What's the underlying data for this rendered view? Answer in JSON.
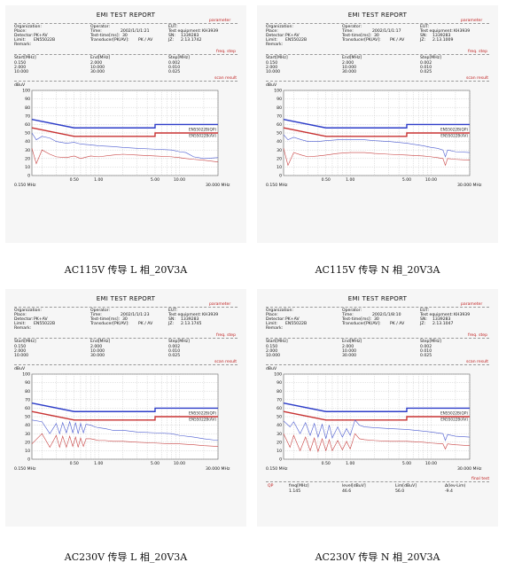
{
  "report": {
    "title": "EMI TEST REPORT",
    "section_parameter": "parameter",
    "section_freq": "freq. step",
    "section_scan": "scan result",
    "section_final": "final test",
    "labels": {
      "organization": "Organization:",
      "place": "Place:",
      "detector": "Detector:",
      "limit": "Limit:",
      "remark": "Remark:",
      "operator": "Operator:",
      "time": "Time:",
      "testtime": "Test-time[ms]:",
      "transducer": "Transducer[PK/AV]:",
      "eut": "EUT:",
      "testeq": "Test equipment:",
      "sn": "SN:",
      "jz": "JZ:",
      "start": "Start[MHz]",
      "end": "End[MHz]",
      "step": "Step[MHz]",
      "unit_y": "dBuV",
      "x_left": "0.150 MHz",
      "x_right": "30.000 MHz"
    },
    "values": {
      "detector": "PK+AV",
      "limit": "EN55022B",
      "testtime": "30",
      "transducer": "PK / AV",
      "testeq": "KH3939",
      "sn": "1339283"
    },
    "freq_rows": [
      [
        "0.150",
        "2.000",
        "0.002"
      ],
      [
        "2.000",
        "10.000",
        "0.010"
      ],
      [
        "10.000",
        "30.000",
        "0.025"
      ]
    ],
    "legend": [
      "EN55022B(QP)",
      "EN55022B(AV)"
    ],
    "final_headers": [
      "freq[MHz]",
      "level[dBuV]",
      "Lim[dBuV]",
      "Δ(lev-Lim)"
    ],
    "final_row": [
      "1.145",
      "46.6",
      "56.0",
      "-9.4"
    ],
    "final_tag": "QP"
  },
  "panels": [
    {
      "caption": "AC115V 传导 L 相_20V3A",
      "time": "2002/1/1/1:21",
      "jz": "2.13.1742"
    },
    {
      "caption": "AC115V 传导 N 相_20V3A",
      "time": "2002/1/1/1:17",
      "jz": "2.13.1009"
    },
    {
      "caption": "AC230V 传导 L 相_20V3A",
      "time": "2002/1/1/1:23",
      "jz": "2.13.1745"
    },
    {
      "caption": "AC230V 传导 N 相_20V3A",
      "time": "2002/1/1/8:10",
      "jz": "2.13.1047"
    }
  ],
  "chart_data": [
    {
      "type": "line",
      "xscale": "log",
      "xlim": [
        0.15,
        30
      ],
      "ylim": [
        0,
        100
      ],
      "xticks": [
        "0.50",
        "1.00",
        "5.00",
        "10.00"
      ],
      "yticks": [
        0,
        10,
        20,
        30,
        40,
        50,
        60,
        70,
        80,
        90,
        100
      ],
      "series": [
        {
          "name": "EN55022B(QP)",
          "color": "#2c3cc8",
          "x": [
            0.15,
            0.5,
            0.5,
            5,
            5,
            30
          ],
          "y": [
            66,
            56,
            56,
            56,
            60,
            60
          ]
        },
        {
          "name": "EN55022B(AV)",
          "color": "#c83232",
          "x": [
            0.15,
            0.5,
            0.5,
            5,
            5,
            30
          ],
          "y": [
            56,
            46,
            46,
            46,
            50,
            50
          ]
        },
        {
          "color": "#4a5ad0",
          "x": [
            0.15,
            0.17,
            0.2,
            0.25,
            0.3,
            0.4,
            0.5,
            0.6,
            0.8,
            1,
            1.5,
            2,
            3,
            5,
            8,
            10,
            12,
            15,
            20,
            30
          ],
          "y": [
            50,
            42,
            46,
            44,
            40,
            38,
            39,
            37,
            36,
            35,
            34,
            33,
            32,
            31,
            30,
            28,
            27,
            22,
            20,
            21
          ]
        },
        {
          "color": "#c84040",
          "x": [
            0.15,
            0.17,
            0.2,
            0.25,
            0.3,
            0.4,
            0.5,
            0.6,
            0.8,
            1,
            1.5,
            2,
            3,
            5,
            8,
            10,
            12,
            15,
            20,
            30
          ],
          "y": [
            32,
            14,
            30,
            25,
            22,
            21,
            23,
            20,
            23,
            22,
            24,
            25,
            24,
            23,
            22,
            21,
            20,
            19,
            18,
            16
          ]
        }
      ]
    },
    {
      "type": "line",
      "xscale": "log",
      "xlim": [
        0.15,
        30
      ],
      "ylim": [
        0,
        100
      ],
      "xticks": [
        "0.50",
        "1.00",
        "5.00",
        "10.00"
      ],
      "yticks": [
        0,
        10,
        20,
        30,
        40,
        50,
        60,
        70,
        80,
        90,
        100
      ],
      "series": [
        {
          "name": "EN55022B(QP)",
          "color": "#2c3cc8",
          "x": [
            0.15,
            0.5,
            0.5,
            5,
            5,
            30
          ],
          "y": [
            66,
            56,
            56,
            56,
            60,
            60
          ]
        },
        {
          "name": "EN55022B(AV)",
          "color": "#c83232",
          "x": [
            0.15,
            0.5,
            0.5,
            5,
            5,
            30
          ],
          "y": [
            56,
            46,
            46,
            46,
            50,
            50
          ]
        },
        {
          "color": "#4a5ad0",
          "x": [
            0.15,
            0.17,
            0.2,
            0.25,
            0.3,
            0.4,
            0.5,
            0.7,
            1,
            1.5,
            2,
            3,
            5,
            8,
            10,
            12,
            14,
            15,
            16,
            20,
            30
          ],
          "y": [
            48,
            42,
            45,
            42,
            40,
            40,
            41,
            42,
            42,
            42,
            41,
            40,
            38,
            35,
            33,
            32,
            30,
            22,
            30,
            28,
            27
          ]
        },
        {
          "color": "#c84040",
          "x": [
            0.15,
            0.17,
            0.2,
            0.25,
            0.3,
            0.4,
            0.5,
            0.7,
            1,
            1.5,
            2,
            3,
            5,
            8,
            10,
            12,
            14,
            15,
            16,
            20,
            30
          ],
          "y": [
            32,
            12,
            27,
            24,
            22,
            23,
            24,
            26,
            27,
            27,
            26,
            25,
            24,
            23,
            22,
            21,
            20,
            12,
            20,
            19,
            18
          ]
        }
      ]
    },
    {
      "type": "line",
      "xscale": "log",
      "xlim": [
        0.15,
        30
      ],
      "ylim": [
        0,
        100
      ],
      "xticks": [
        "0.50",
        "1.00",
        "5.00",
        "10.00"
      ],
      "yticks": [
        0,
        10,
        20,
        30,
        40,
        50,
        60,
        70,
        80,
        90,
        100
      ],
      "series": [
        {
          "name": "EN55022B(QP)",
          "color": "#2c3cc8",
          "x": [
            0.15,
            0.5,
            0.5,
            5,
            5,
            30
          ],
          "y": [
            66,
            56,
            56,
            56,
            60,
            60
          ]
        },
        {
          "name": "EN55022B(AV)",
          "color": "#c83232",
          "x": [
            0.15,
            0.5,
            0.5,
            5,
            5,
            30
          ],
          "y": [
            56,
            46,
            46,
            46,
            50,
            50
          ]
        },
        {
          "color": "#4a5ad0",
          "x": [
            0.15,
            0.2,
            0.25,
            0.3,
            0.33,
            0.36,
            0.4,
            0.44,
            0.48,
            0.52,
            0.56,
            0.6,
            0.65,
            0.7,
            0.8,
            0.9,
            1,
            1.2,
            1.5,
            2,
            3,
            5,
            8,
            10,
            15,
            20,
            30
          ],
          "y": [
            46,
            44,
            30,
            42,
            30,
            43,
            31,
            44,
            31,
            43,
            30,
            42,
            31,
            41,
            40,
            38,
            37,
            36,
            34,
            34,
            32,
            31,
            30,
            28,
            26,
            24,
            22
          ]
        },
        {
          "color": "#c84040",
          "x": [
            0.15,
            0.2,
            0.25,
            0.3,
            0.33,
            0.36,
            0.4,
            0.44,
            0.48,
            0.52,
            0.56,
            0.6,
            0.65,
            0.7,
            0.8,
            0.9,
            1,
            1.2,
            1.5,
            2,
            3,
            5,
            8,
            10,
            15,
            20,
            30
          ],
          "y": [
            18,
            30,
            14,
            28,
            14,
            27,
            14,
            27,
            15,
            26,
            14,
            25,
            15,
            24,
            24,
            23,
            22,
            22,
            21,
            21,
            20,
            19,
            18,
            18,
            17,
            16,
            15
          ]
        }
      ]
    },
    {
      "type": "line",
      "xscale": "log",
      "xlim": [
        0.15,
        30
      ],
      "ylim": [
        0,
        100
      ],
      "xticks": [
        "0.50",
        "1.00",
        "5.00",
        "10.00"
      ],
      "yticks": [
        0,
        10,
        20,
        30,
        40,
        50,
        60,
        70,
        80,
        90,
        100
      ],
      "series": [
        {
          "name": "EN55022B(QP)",
          "color": "#2c3cc8",
          "x": [
            0.15,
            0.5,
            0.5,
            5,
            5,
            30
          ],
          "y": [
            66,
            56,
            56,
            56,
            60,
            60
          ]
        },
        {
          "name": "EN55022B(AV)",
          "color": "#c83232",
          "x": [
            0.15,
            0.5,
            0.5,
            5,
            5,
            30
          ],
          "y": [
            56,
            46,
            46,
            46,
            50,
            50
          ]
        },
        {
          "color": "#4a5ad0",
          "x": [
            0.15,
            0.18,
            0.2,
            0.24,
            0.28,
            0.32,
            0.36,
            0.4,
            0.45,
            0.5,
            0.55,
            0.6,
            0.7,
            0.8,
            0.9,
            1,
            1.145,
            1.3,
            1.5,
            2,
            3,
            5,
            8,
            10,
            14,
            15,
            16,
            20,
            30
          ],
          "y": [
            45,
            38,
            44,
            30,
            43,
            28,
            42,
            26,
            41,
            24,
            40,
            25,
            38,
            26,
            36,
            28,
            46,
            40,
            38,
            37,
            36,
            35,
            33,
            32,
            30,
            22,
            29,
            27,
            26
          ]
        },
        {
          "color": "#c84040",
          "x": [
            0.15,
            0.18,
            0.2,
            0.24,
            0.28,
            0.32,
            0.36,
            0.4,
            0.45,
            0.5,
            0.55,
            0.6,
            0.7,
            0.8,
            0.9,
            1,
            1.145,
            1.3,
            1.5,
            2,
            3,
            5,
            8,
            10,
            14,
            15,
            16,
            20,
            30
          ],
          "y": [
            30,
            14,
            28,
            10,
            26,
            10,
            25,
            9,
            24,
            10,
            23,
            10,
            22,
            11,
            21,
            12,
            30,
            24,
            23,
            22,
            21,
            21,
            20,
            19,
            18,
            12,
            18,
            17,
            16
          ]
        }
      ]
    }
  ]
}
